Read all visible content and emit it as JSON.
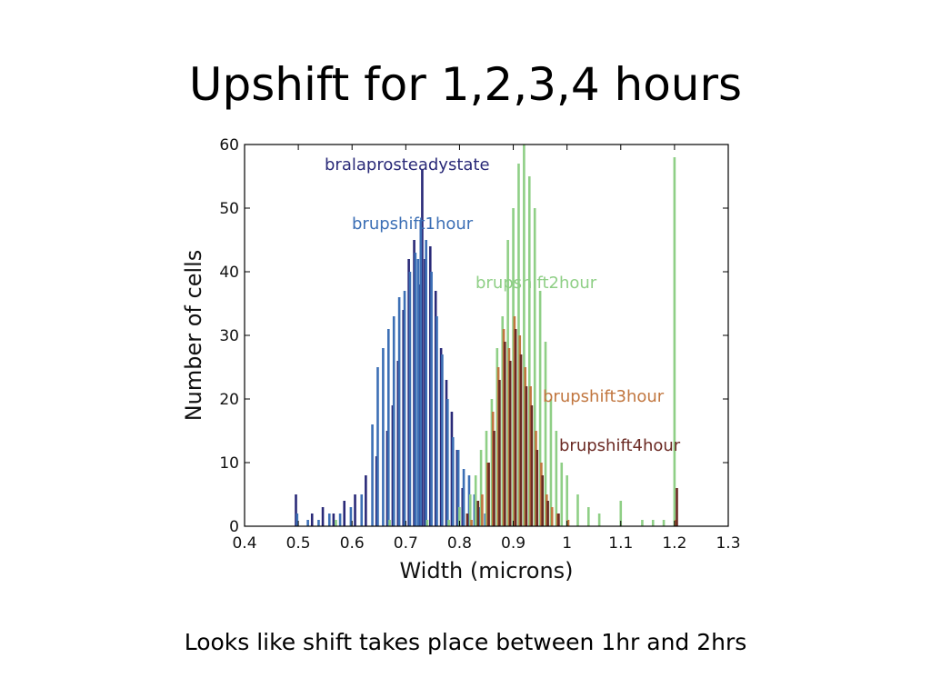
{
  "slide": {
    "title": "Upshift for 1,2,3,4 hours",
    "caption": "Looks like shift takes place between 1hr and 2hrs"
  },
  "chart_data": {
    "type": "bar",
    "xlabel": "Width (microns)",
    "ylabel": "Number of cells",
    "xlim": [
      0.4,
      1.3
    ],
    "ylim": [
      0,
      60
    ],
    "xticks": [
      "0.4",
      "0.5",
      "0.6",
      "0.7",
      "0.8",
      "0.9",
      "1",
      "1.1",
      "1.2",
      "1.3"
    ],
    "yticks": [
      "0",
      "10",
      "20",
      "30",
      "40",
      "50",
      "60"
    ],
    "grid": false,
    "series": [
      {
        "name": "bralaprosteadystate",
        "color": "#2a2a78",
        "points": [
          [
            0.5,
            5
          ],
          [
            0.53,
            2
          ],
          [
            0.55,
            3
          ],
          [
            0.57,
            2
          ],
          [
            0.59,
            4
          ],
          [
            0.61,
            5
          ],
          [
            0.63,
            8
          ],
          [
            0.65,
            11
          ],
          [
            0.67,
            15
          ],
          [
            0.68,
            19
          ],
          [
            0.69,
            26
          ],
          [
            0.7,
            34
          ],
          [
            0.71,
            42
          ],
          [
            0.72,
            45
          ],
          [
            0.73,
            38
          ],
          [
            0.735,
            56
          ],
          [
            0.74,
            42
          ],
          [
            0.75,
            44
          ],
          [
            0.76,
            37
          ],
          [
            0.77,
            28
          ],
          [
            0.78,
            23
          ],
          [
            0.79,
            18
          ],
          [
            0.8,
            12
          ],
          [
            0.81,
            6
          ],
          [
            0.82,
            2
          ]
        ]
      },
      {
        "name": "brupshift1hour",
        "color": "#3c6fb5",
        "points": [
          [
            0.5,
            2
          ],
          [
            0.52,
            1
          ],
          [
            0.54,
            1
          ],
          [
            0.56,
            2
          ],
          [
            0.58,
            2
          ],
          [
            0.6,
            3
          ],
          [
            0.62,
            5
          ],
          [
            0.64,
            16
          ],
          [
            0.65,
            25
          ],
          [
            0.66,
            28
          ],
          [
            0.67,
            31
          ],
          [
            0.68,
            33
          ],
          [
            0.69,
            36
          ],
          [
            0.7,
            37
          ],
          [
            0.71,
            40
          ],
          [
            0.72,
            43
          ],
          [
            0.725,
            42
          ],
          [
            0.73,
            48
          ],
          [
            0.74,
            45
          ],
          [
            0.75,
            40
          ],
          [
            0.76,
            33
          ],
          [
            0.77,
            27
          ],
          [
            0.78,
            20
          ],
          [
            0.79,
            14
          ],
          [
            0.8,
            12
          ],
          [
            0.81,
            9
          ],
          [
            0.82,
            8
          ],
          [
            0.83,
            5
          ],
          [
            0.84,
            3
          ],
          [
            0.85,
            2
          ]
        ]
      },
      {
        "name": "brupshift2hour",
        "color": "#8fcf86",
        "points": [
          [
            0.57,
            1
          ],
          [
            0.67,
            1
          ],
          [
            0.74,
            1
          ],
          [
            0.78,
            1
          ],
          [
            0.8,
            3
          ],
          [
            0.82,
            5
          ],
          [
            0.83,
            8
          ],
          [
            0.84,
            12
          ],
          [
            0.85,
            15
          ],
          [
            0.86,
            20
          ],
          [
            0.87,
            28
          ],
          [
            0.88,
            33
          ],
          [
            0.89,
            45
          ],
          [
            0.9,
            50
          ],
          [
            0.91,
            57
          ],
          [
            0.92,
            60
          ],
          [
            0.93,
            55
          ],
          [
            0.94,
            50
          ],
          [
            0.95,
            37
          ],
          [
            0.96,
            29
          ],
          [
            0.97,
            20
          ],
          [
            0.98,
            15
          ],
          [
            0.99,
            10
          ],
          [
            1.0,
            8
          ],
          [
            1.02,
            5
          ],
          [
            1.04,
            3
          ],
          [
            1.06,
            2
          ],
          [
            1.1,
            4
          ],
          [
            1.14,
            1
          ],
          [
            1.16,
            1
          ],
          [
            1.18,
            1
          ],
          [
            1.2,
            58
          ]
        ]
      },
      {
        "name": "brupshift3hour",
        "color": "#c1763f",
        "points": [
          [
            0.82,
            1
          ],
          [
            0.84,
            5
          ],
          [
            0.85,
            10
          ],
          [
            0.86,
            18
          ],
          [
            0.87,
            25
          ],
          [
            0.88,
            31
          ],
          [
            0.89,
            28
          ],
          [
            0.9,
            33
          ],
          [
            0.91,
            30
          ],
          [
            0.92,
            25
          ],
          [
            0.93,
            22
          ],
          [
            0.94,
            15
          ],
          [
            0.95,
            10
          ],
          [
            0.96,
            5
          ],
          [
            0.97,
            3
          ],
          [
            0.98,
            2
          ],
          [
            1.0,
            1
          ],
          [
            1.2,
            1
          ]
        ]
      },
      {
        "name": "brupshift4hour",
        "color": "#6b2a24",
        "points": [
          [
            0.81,
            2
          ],
          [
            0.83,
            4
          ],
          [
            0.85,
            10
          ],
          [
            0.86,
            15
          ],
          [
            0.87,
            23
          ],
          [
            0.88,
            29
          ],
          [
            0.89,
            26
          ],
          [
            0.9,
            31
          ],
          [
            0.91,
            27
          ],
          [
            0.92,
            22
          ],
          [
            0.93,
            19
          ],
          [
            0.94,
            12
          ],
          [
            0.95,
            8
          ],
          [
            0.96,
            4
          ],
          [
            0.98,
            2
          ],
          [
            1.2,
            6
          ]
        ]
      }
    ]
  }
}
